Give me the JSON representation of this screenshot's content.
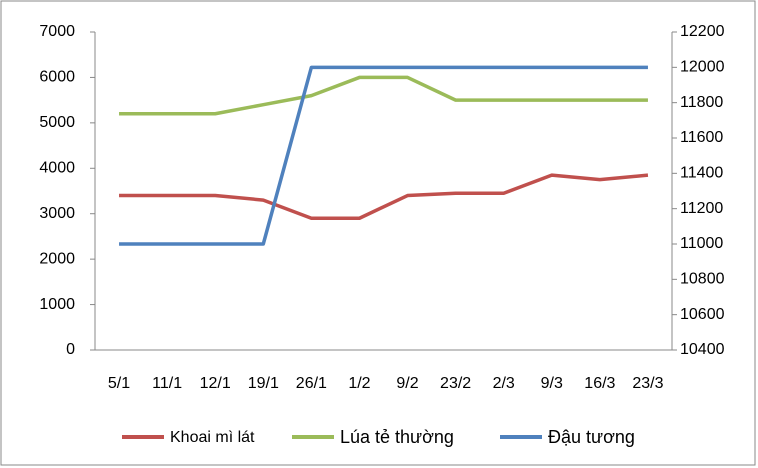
{
  "chart_data": {
    "type": "line",
    "categories": [
      "5/1",
      "11/1",
      "12/1",
      "19/1",
      "26/1",
      "1/2",
      "9/2",
      "23/2",
      "2/3",
      "9/3",
      "16/3",
      "23/3"
    ],
    "series": [
      {
        "name": "Khoai mì lát",
        "color": "#c0504d",
        "values": [
          3400,
          3400,
          3400,
          3300,
          2900,
          2900,
          3400,
          3450,
          3450,
          3850,
          3750,
          3850
        ]
      },
      {
        "name": "Lúa tẻ thường",
        "color": "#9bbb59",
        "values": [
          5200,
          5200,
          5200,
          5400,
          5600,
          6000,
          6000,
          5500,
          5500,
          5500,
          5500,
          5500
        ]
      },
      {
        "name": "Đậu tương",
        "color": "#4f81bd",
        "axis": "y2",
        "values": [
          11000,
          11000,
          11000,
          11000,
          12000,
          12000,
          12000,
          12000,
          12000,
          12000,
          12000,
          12000
        ]
      }
    ],
    "ylim": [
      0,
      7000
    ],
    "yticks": [
      0,
      1000,
      2000,
      3000,
      4000,
      5000,
      6000,
      7000
    ],
    "y2lim": [
      10400,
      12200
    ],
    "y2ticks": [
      10400,
      10600,
      10800,
      11000,
      11200,
      11400,
      11600,
      11800,
      12000,
      12200
    ],
    "legend": "bottom"
  }
}
